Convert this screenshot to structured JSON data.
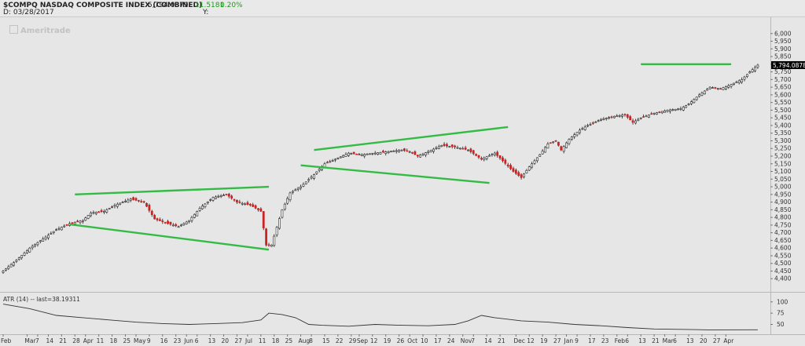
{
  "header": {
    "symbol": "$COMPQ NASDAQ COMPOSITE INDEX (COMBINED)",
    "price": "5,794.0879",
    "change": "11.5181",
    "change_pct": "0.20%",
    "date_line": "D: 03/28/2017",
    "y_label": "Y:",
    "watermark": "Ameritrade"
  },
  "colors": {
    "up": "#ffffff",
    "down": "#cc2222",
    "trendline": "#33bb44",
    "price_tag": "#000000"
  },
  "chart_data": [
    {
      "type": "candlestick",
      "title": "$COMPQ NASDAQ COMPOSITE INDEX (COMBINED)",
      "ylim": [
        4350,
        6050
      ],
      "y_ticks": [
        4400,
        4450,
        4500,
        4550,
        4600,
        4650,
        4700,
        4750,
        4800,
        4850,
        4900,
        4950,
        5000,
        5050,
        5100,
        5150,
        5200,
        5250,
        5300,
        5350,
        5400,
        5450,
        5500,
        5550,
        5600,
        5650,
        5700,
        5750,
        5800,
        5850,
        5900,
        5950,
        6000
      ],
      "y_tick_labels": [
        "4,400",
        "4,450",
        "4,500",
        "4,550",
        "4,600",
        "4,650",
        "4,700",
        "4,750",
        "4,800",
        "4,850",
        "4,900",
        "4,950",
        "5,000",
        "5,050",
        "5,100",
        "5,150",
        "5,200",
        "5,250",
        "5,300",
        "5,350",
        "5,400",
        "5,450",
        "5,500",
        "5,550",
        "5,600",
        "5,650",
        "5,700",
        "5,750",
        "5,800",
        "5,850",
        "5,900",
        "5,950",
        "6,000"
      ],
      "last_price_label": "5,794.08789",
      "last_price": 5794.09,
      "close_anchors": [
        [
          0,
          4450
        ],
        [
          5,
          4520
        ],
        [
          10,
          4600
        ],
        [
          15,
          4660
        ],
        [
          20,
          4720
        ],
        [
          25,
          4760
        ],
        [
          30,
          4780
        ],
        [
          33,
          4830
        ],
        [
          38,
          4840
        ],
        [
          42,
          4880
        ],
        [
          48,
          4920
        ],
        [
          53,
          4900
        ],
        [
          57,
          4790
        ],
        [
          62,
          4760
        ],
        [
          66,
          4740
        ],
        [
          70,
          4780
        ],
        [
          74,
          4860
        ],
        [
          79,
          4930
        ],
        [
          84,
          4950
        ],
        [
          88,
          4900
        ],
        [
          93,
          4880
        ],
        [
          97,
          4840
        ],
        [
          99,
          4620
        ],
        [
          101,
          4620
        ],
        [
          105,
          4850
        ],
        [
          108,
          4960
        ],
        [
          112,
          5000
        ],
        [
          117,
          5080
        ],
        [
          121,
          5150
        ],
        [
          125,
          5180
        ],
        [
          130,
          5220
        ],
        [
          135,
          5210
        ],
        [
          140,
          5220
        ],
        [
          145,
          5230
        ],
        [
          150,
          5240
        ],
        [
          153,
          5230
        ],
        [
          156,
          5200
        ],
        [
          160,
          5230
        ],
        [
          165,
          5270
        ],
        [
          170,
          5260
        ],
        [
          175,
          5240
        ],
        [
          180,
          5180
        ],
        [
          185,
          5220
        ],
        [
          188,
          5170
        ],
        [
          192,
          5100
        ],
        [
          195,
          5060
        ],
        [
          198,
          5130
        ],
        [
          202,
          5210
        ],
        [
          205,
          5280
        ],
        [
          208,
          5300
        ],
        [
          210,
          5240
        ],
        [
          213,
          5310
        ],
        [
          217,
          5370
        ],
        [
          220,
          5400
        ],
        [
          225,
          5440
        ],
        [
          230,
          5460
        ],
        [
          234,
          5470
        ],
        [
          237,
          5420
        ],
        [
          240,
          5450
        ],
        [
          245,
          5480
        ],
        [
          250,
          5500
        ],
        [
          255,
          5510
        ],
        [
          258,
          5540
        ],
        [
          262,
          5600
        ],
        [
          266,
          5650
        ],
        [
          270,
          5640
        ],
        [
          273,
          5660
        ],
        [
          278,
          5700
        ],
        [
          281,
          5750
        ],
        [
          284,
          5794
        ]
      ],
      "x_ticks": [
        {
          "i": 0,
          "label": "Feb"
        },
        {
          "i": 9,
          "label": "Mar"
        },
        {
          "i": 13,
          "label": "7"
        },
        {
          "i": 17,
          "label": "14"
        },
        {
          "i": 22,
          "label": "21"
        },
        {
          "i": 27,
          "label": "28"
        },
        {
          "i": 31,
          "label": "Apr"
        },
        {
          "i": 36,
          "label": "11"
        },
        {
          "i": 41,
          "label": "18"
        },
        {
          "i": 46,
          "label": "25"
        },
        {
          "i": 50,
          "label": "May"
        },
        {
          "i": 55,
          "label": "9"
        },
        {
          "i": 60,
          "label": "16"
        },
        {
          "i": 65,
          "label": "23"
        },
        {
          "i": 69,
          "label": "Jun"
        },
        {
          "i": 73,
          "label": "6"
        },
        {
          "i": 78,
          "label": "13"
        },
        {
          "i": 83,
          "label": "20"
        },
        {
          "i": 88,
          "label": "27"
        },
        {
          "i": 92,
          "label": "Jul"
        },
        {
          "i": 97,
          "label": "11"
        },
        {
          "i": 102,
          "label": "18"
        },
        {
          "i": 107,
          "label": "25"
        },
        {
          "i": 112,
          "label": "Aug"
        },
        {
          "i": 116,
          "label": "8"
        },
        {
          "i": 121,
          "label": "15"
        },
        {
          "i": 126,
          "label": "22"
        },
        {
          "i": 131,
          "label": "29"
        },
        {
          "i": 134,
          "label": "Sep"
        },
        {
          "i": 139,
          "label": "12"
        },
        {
          "i": 144,
          "label": "19"
        },
        {
          "i": 149,
          "label": "26"
        },
        {
          "i": 153,
          "label": "Oct"
        },
        {
          "i": 158,
          "label": "10"
        },
        {
          "i": 163,
          "label": "17"
        },
        {
          "i": 168,
          "label": "24"
        },
        {
          "i": 173,
          "label": "Nov"
        },
        {
          "i": 177,
          "label": "7"
        },
        {
          "i": 182,
          "label": "14"
        },
        {
          "i": 187,
          "label": "21"
        },
        {
          "i": 193,
          "label": "Dec"
        },
        {
          "i": 198,
          "label": "12"
        },
        {
          "i": 203,
          "label": "19"
        },
        {
          "i": 208,
          "label": "27"
        },
        {
          "i": 212,
          "label": "Jan"
        },
        {
          "i": 216,
          "label": "9"
        },
        {
          "i": 221,
          "label": "17"
        },
        {
          "i": 226,
          "label": "23"
        },
        {
          "i": 231,
          "label": "Feb"
        },
        {
          "i": 235,
          "label": "6"
        },
        {
          "i": 240,
          "label": "13"
        },
        {
          "i": 245,
          "label": "21"
        },
        {
          "i": 249,
          "label": "Mar"
        },
        {
          "i": 253,
          "label": "6"
        },
        {
          "i": 258,
          "label": "13"
        },
        {
          "i": 263,
          "label": "20"
        },
        {
          "i": 268,
          "label": "27"
        },
        {
          "i": 272,
          "label": "Apr"
        }
      ],
      "trendlines": [
        {
          "name": "upper-1",
          "from": [
            27,
            4950
          ],
          "to": [
            100,
            5000
          ]
        },
        {
          "name": "lower-1",
          "from": [
            25,
            4755
          ],
          "to": [
            100,
            4590
          ]
        },
        {
          "name": "upper-2",
          "from": [
            117,
            5240
          ],
          "to": [
            190,
            5390
          ]
        },
        {
          "name": "lower-2",
          "from": [
            112,
            5140
          ],
          "to": [
            183,
            5025
          ]
        },
        {
          "name": "resistance",
          "from": [
            240,
            5800
          ],
          "to": [
            274,
            5800
          ]
        }
      ]
    },
    {
      "type": "line",
      "title": "ATR (14) -- last=38.19311",
      "ylim": [
        30,
        110
      ],
      "y_ticks": [
        50,
        75,
        100
      ],
      "y_tick_labels": [
        "50",
        "75",
        "100"
      ],
      "anchors": [
        [
          0,
          95
        ],
        [
          10,
          85
        ],
        [
          20,
          70
        ],
        [
          30,
          65
        ],
        [
          40,
          60
        ],
        [
          50,
          55
        ],
        [
          60,
          52
        ],
        [
          70,
          50
        ],
        [
          80,
          52
        ],
        [
          90,
          54
        ],
        [
          97,
          60
        ],
        [
          100,
          75
        ],
        [
          105,
          72
        ],
        [
          110,
          65
        ],
        [
          115,
          50
        ],
        [
          120,
          48
        ],
        [
          130,
          46
        ],
        [
          140,
          50
        ],
        [
          150,
          48
        ],
        [
          160,
          47
        ],
        [
          170,
          50
        ],
        [
          175,
          58
        ],
        [
          180,
          70
        ],
        [
          185,
          65
        ],
        [
          195,
          58
        ],
        [
          205,
          55
        ],
        [
          215,
          50
        ],
        [
          225,
          47
        ],
        [
          235,
          43
        ],
        [
          245,
          40
        ],
        [
          255,
          39
        ],
        [
          265,
          38
        ],
        [
          284,
          38.19
        ]
      ]
    }
  ]
}
